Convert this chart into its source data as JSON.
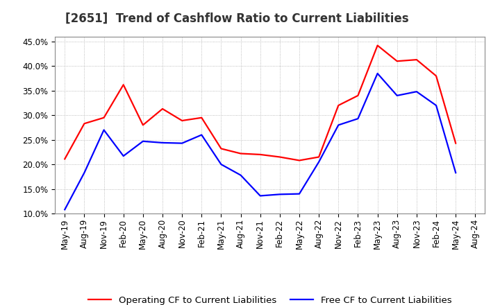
{
  "title": "[2651]  Trend of Cashflow Ratio to Current Liabilities",
  "ylim": [
    0.1,
    0.46
  ],
  "yticks": [
    0.1,
    0.15,
    0.2,
    0.25,
    0.3,
    0.35,
    0.4,
    0.45
  ],
  "background_color": "#ffffff",
  "plot_bg_color": "#ffffff",
  "grid_color": "#aaaaaa",
  "x_labels": [
    "May-19",
    "Aug-19",
    "Nov-19",
    "Feb-20",
    "May-20",
    "Aug-20",
    "Nov-20",
    "Feb-21",
    "May-21",
    "Aug-21",
    "Nov-21",
    "Feb-22",
    "May-22",
    "Aug-22",
    "Nov-22",
    "Feb-23",
    "May-23",
    "Aug-23",
    "Nov-23",
    "Feb-24",
    "May-24",
    "Aug-24"
  ],
  "operating_cf": [
    0.211,
    0.283,
    0.295,
    0.362,
    0.28,
    0.313,
    0.289,
    0.295,
    0.232,
    0.222,
    0.22,
    0.215,
    0.208,
    0.215,
    0.32,
    0.34,
    0.442,
    0.41,
    0.413,
    0.38,
    0.243,
    null
  ],
  "free_cf": [
    0.108,
    0.183,
    0.27,
    0.217,
    0.247,
    0.244,
    0.243,
    0.26,
    0.2,
    0.178,
    0.136,
    0.139,
    0.14,
    0.205,
    0.28,
    0.293,
    0.385,
    0.34,
    0.348,
    0.32,
    0.183,
    null
  ],
  "operating_color": "#ff0000",
  "free_color": "#0000ff",
  "legend_operating": "Operating CF to Current Liabilities",
  "legend_free": "Free CF to Current Liabilities",
  "title_fontsize": 12,
  "axis_fontsize": 8.5,
  "legend_fontsize": 9.5
}
